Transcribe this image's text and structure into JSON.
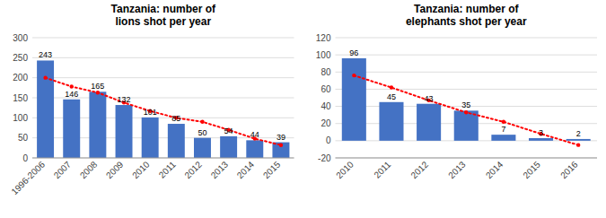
{
  "chart_data": [
    {
      "type": "bar",
      "title": "Tanzania: number of\nlions shot per year",
      "categories": [
        "1996-2006",
        "2007",
        "2008",
        "2009",
        "2010",
        "2011",
        "2012",
        "2013",
        "2014",
        "2015"
      ],
      "series": [
        {
          "type": "bar",
          "color": "#4472c4",
          "data_labels": true,
          "values": [
            243,
            146,
            165,
            132,
            101,
            85,
            50,
            54,
            44,
            39
          ]
        },
        {
          "type": "line",
          "color": "#ff0000",
          "line_style": "dotted",
          "marker": "point",
          "values": [
            200,
            178,
            163,
            138,
            117,
            100,
            90,
            70,
            48,
            32
          ]
        }
      ],
      "ylim": [
        0,
        300
      ],
      "yticks": [
        0,
        50,
        100,
        150,
        200,
        250,
        300
      ],
      "grid": true
    },
    {
      "type": "bar",
      "title": "Tanzania: number of\nelephants shot per year",
      "categories": [
        "2010",
        "2011",
        "2012",
        "2013",
        "2014",
        "2015",
        "2016"
      ],
      "series": [
        {
          "type": "bar",
          "color": "#4472c4",
          "data_labels": true,
          "values": [
            96,
            45,
            43,
            35,
            7,
            3,
            2
          ]
        },
        {
          "type": "line",
          "color": "#ff0000",
          "line_style": "dotted",
          "marker": "point",
          "values": [
            76,
            62,
            47,
            33,
            22,
            8,
            -5
          ]
        }
      ],
      "ylim": [
        -20,
        120
      ],
      "yticks": [
        -20,
        0,
        20,
        40,
        60,
        80,
        100,
        120
      ],
      "grid": true
    }
  ]
}
